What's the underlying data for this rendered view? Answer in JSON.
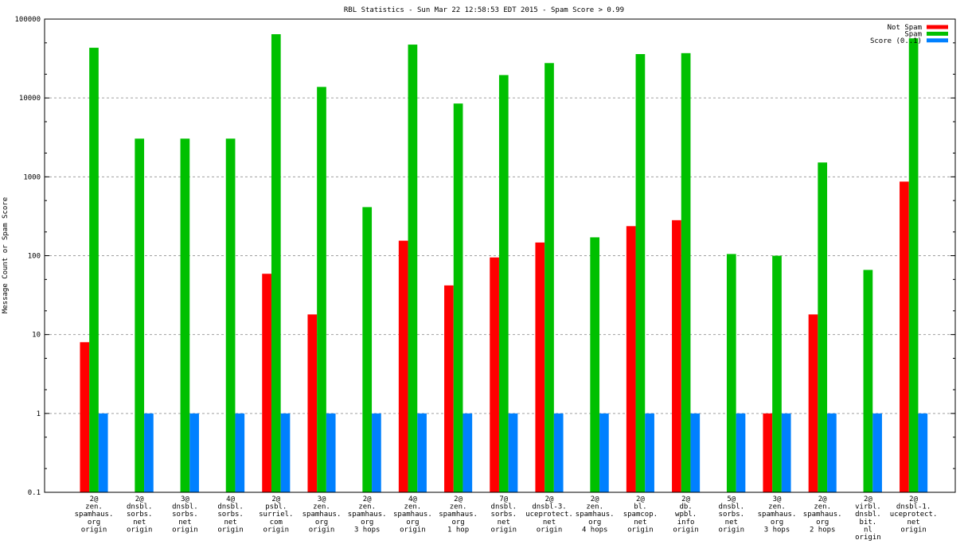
{
  "chart_data": {
    "type": "bar",
    "title": "RBL Statistics - Sun Mar 22 12:58:53 EDT 2015 - Spam Score > 0.99",
    "xlabel": "",
    "ylabel": "Message Count or Spam Score",
    "yscale": "log",
    "ylim": [
      0.1,
      100000
    ],
    "yticks": [
      "0.1",
      "1",
      "10",
      "100",
      "1000",
      "10000",
      "100000"
    ],
    "ytick_values": [
      0.1,
      1,
      10,
      100,
      1000,
      10000,
      100000
    ],
    "grid": true,
    "legend_position": "top-right",
    "categories": [
      [
        "2@",
        "zen.",
        "spamhaus.",
        "org",
        "origin"
      ],
      [
        "2@",
        "dnsbl.",
        "sorbs.",
        "net",
        "origin"
      ],
      [
        "3@",
        "dnsbl.",
        "sorbs.",
        "net",
        "origin"
      ],
      [
        "4@",
        "dnsbl.",
        "sorbs.",
        "net",
        "origin"
      ],
      [
        "2@",
        "psbl.",
        "surriel.",
        "com",
        "origin"
      ],
      [
        "3@",
        "zen.",
        "spamhaus.",
        "org",
        "origin"
      ],
      [
        "2@",
        "zen.",
        "spamhaus.",
        "org",
        "3 hops"
      ],
      [
        "4@",
        "zen.",
        "spamhaus.",
        "org",
        "origin"
      ],
      [
        "2@",
        "zen.",
        "spamhaus.",
        "org",
        "1 hop"
      ],
      [
        "7@",
        "dnsbl.",
        "sorbs.",
        "net",
        "origin"
      ],
      [
        "2@",
        "dnsbl-3.",
        "uceprotect.",
        "net",
        "origin"
      ],
      [
        "2@",
        "zen.",
        "spamhaus.",
        "org",
        "4 hops"
      ],
      [
        "2@",
        "bl.",
        "spamcop.",
        "net",
        "origin"
      ],
      [
        "2@",
        "db.",
        "wpbl.",
        "info",
        "origin"
      ],
      [
        "5@",
        "dnsbl.",
        "sorbs.",
        "net",
        "origin"
      ],
      [
        "3@",
        "zen.",
        "spamhaus.",
        "org",
        "3 hops"
      ],
      [
        "2@",
        "zen.",
        "spamhaus.",
        "org",
        "2 hops"
      ],
      [
        "2@",
        "virbl.",
        "dnsbl.",
        "bit.",
        "nl",
        "origin"
      ],
      [
        "2@",
        "dnsbl-1.",
        "uceprotect.",
        "net",
        "origin"
      ]
    ],
    "series": [
      {
        "name": "Not Spam",
        "color": "#ff0000",
        "values": [
          8,
          null,
          null,
          null,
          59,
          18,
          null,
          155,
          42,
          95,
          147,
          null,
          237,
          282,
          null,
          1,
          18,
          null,
          870
        ]
      },
      {
        "name": "Spam",
        "color": "#00c000",
        "values": [
          43300,
          3050,
          3050,
          3050,
          64300,
          13800,
          413,
          47500,
          8500,
          19500,
          27700,
          171,
          36000,
          37000,
          105,
          100,
          1520,
          66,
          57000
        ]
      },
      {
        "name": "Score (0..1)",
        "color": "#0080ff",
        "values": [
          1,
          1,
          1,
          1,
          1,
          1,
          1,
          1,
          1,
          1,
          1,
          1,
          1,
          1,
          1,
          1,
          1,
          1,
          1
        ]
      }
    ]
  }
}
